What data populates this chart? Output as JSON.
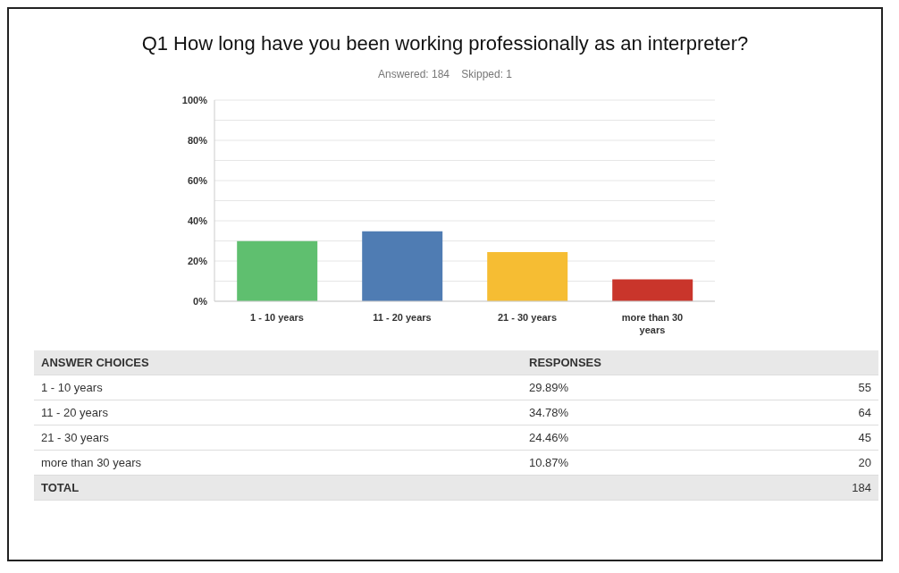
{
  "chart_data": {
    "type": "bar",
    "title": "Q1 How long have you been working professionally as an interpreter?",
    "subtitle": "Answered: 184    Skipped: 1",
    "categories": [
      "1 - 10 years",
      "11 - 20 years",
      "21 - 30 years",
      "more than 30 years"
    ],
    "values": [
      29.89,
      34.78,
      24.46,
      10.87
    ],
    "colors": [
      "#5fbf6f",
      "#4f7cb3",
      "#f6bd33",
      "#c9352b"
    ],
    "ylim": [
      0,
      100
    ],
    "yticks": [
      {
        "value": 0,
        "label": "0%"
      },
      {
        "value": 10,
        "label": null
      },
      {
        "value": 20,
        "label": "20%"
      },
      {
        "value": 30,
        "label": null
      },
      {
        "value": 40,
        "label": "40%"
      },
      {
        "value": 50,
        "label": null
      },
      {
        "value": 60,
        "label": "60%"
      },
      {
        "value": 70,
        "label": null
      },
      {
        "value": 80,
        "label": "80%"
      },
      {
        "value": 90,
        "label": null
      },
      {
        "value": 100,
        "label": "100%"
      }
    ],
    "grid": "y",
    "annotations": [
      "ANSWER CHOICES",
      "RESPONSES",
      "55",
      "64",
      "45",
      "20",
      "TOTAL",
      "184",
      "29.89%",
      "34.78%",
      "24.46%",
      "10.87%"
    ]
  }
}
